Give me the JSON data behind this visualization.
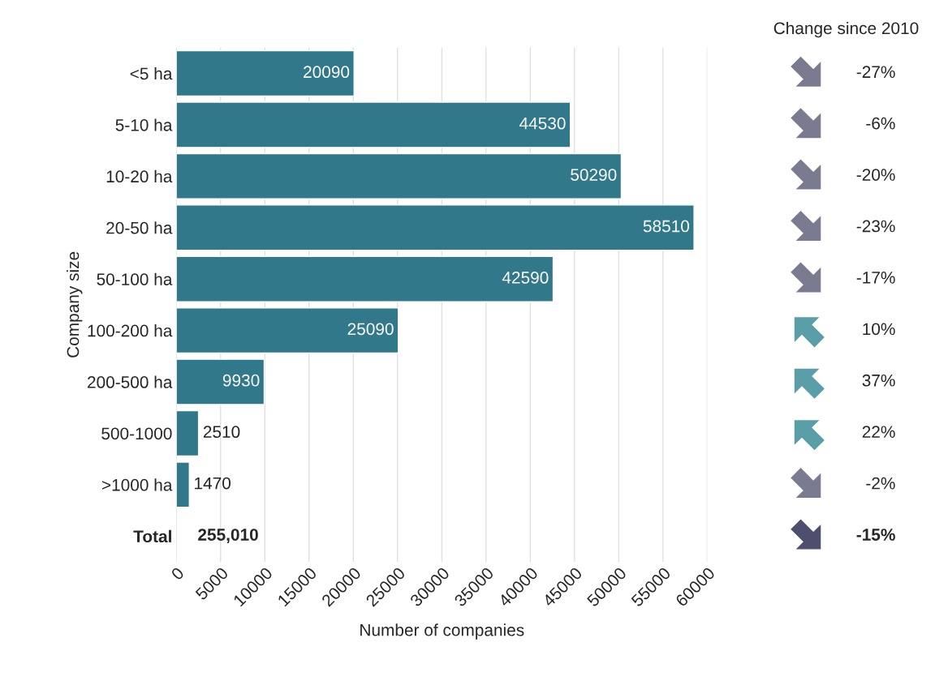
{
  "chart_data": [
    {
      "type": "bar",
      "orientation": "horizontal",
      "xlabel": "Number of companies",
      "ylabel": "Company size",
      "categories": [
        "<5 ha",
        "5-10 ha",
        "10-20 ha",
        "20-50 ha",
        "50-100 ha",
        "100-200 ha",
        "200-500 ha",
        "500-1000",
        ">1000 ha",
        "Total"
      ],
      "values": [
        20090,
        44530,
        50290,
        58510,
        42590,
        25090,
        9930,
        2510,
        1470,
        null
      ],
      "value_labels": [
        "20090",
        "44530",
        "50290",
        "58510",
        "42590",
        "25090",
        "9930",
        "2510",
        "1470",
        "255,010"
      ],
      "color": "#31788a",
      "xlim": [
        0,
        60000
      ],
      "xticks": [
        0,
        5000,
        10000,
        15000,
        20000,
        25000,
        30000,
        35000,
        40000,
        45000,
        50000,
        55000,
        60000
      ],
      "grid": "x",
      "legend": false
    },
    {
      "type": "other",
      "title": "Change since 2010",
      "values": [
        -27,
        -6,
        -20,
        -23,
        -17,
        10,
        37,
        22,
        -2,
        -15
      ],
      "value_labels": [
        "-27%",
        "-6%",
        "-20%",
        "-23%",
        "-17%",
        "10%",
        "37%",
        "22%",
        "-2%",
        "-15%"
      ],
      "colors": [
        "#7a7a90",
        "#7a7a90",
        "#7a7a90",
        "#7a7a90",
        "#7a7a90",
        "#5a9ea8",
        "#5a9ea8",
        "#5a9ea8",
        "#7a7a90",
        "#4e4e6e"
      ]
    }
  ]
}
